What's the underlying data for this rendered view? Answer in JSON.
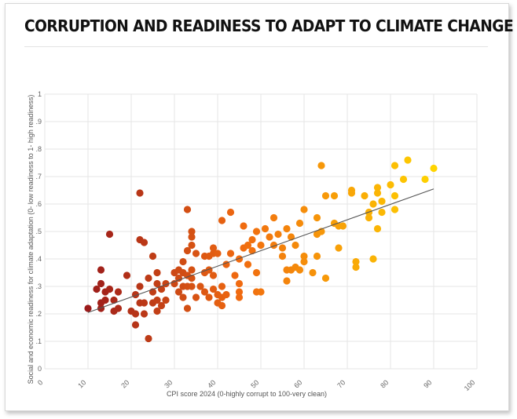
{
  "chart_data": {
    "type": "scatter",
    "title": "CORRUPTION AND READINESS TO ADAPT TO CLIMATE CHANGE",
    "xlabel": "CPI score 2024 (0-highly corrupt to 100-very clean)",
    "ylabel": "Social and economic readiness for climate adaptation (0- low readiness to 1- high readiness)",
    "xlim": [
      0,
      100
    ],
    "ylim": [
      0,
      1
    ],
    "xticks": [
      "0",
      "10",
      "20",
      "30",
      "40",
      "50",
      "60",
      "70",
      "80",
      "90",
      "100"
    ],
    "yticks": [
      "0",
      ".1",
      ".2",
      ".3",
      ".4",
      ".5",
      ".6",
      ".7",
      ".8",
      ".9",
      "1"
    ],
    "grid": true,
    "trendline": {
      "x": [
        10,
        90
      ],
      "y": [
        0.205,
        0.655
      ]
    },
    "colors": {
      "low": "#9b1b1b",
      "mid": "#f06a10",
      "high": "#ffd400",
      "trend": "#555555",
      "grid": "#e6e6e6"
    },
    "points": [
      [
        10,
        0.22
      ],
      [
        12,
        0.29
      ],
      [
        13,
        0.36
      ],
      [
        13,
        0.31
      ],
      [
        13,
        0.24
      ],
      [
        13,
        0.22
      ],
      [
        14,
        0.25
      ],
      [
        14,
        0.28
      ],
      [
        15,
        0.49
      ],
      [
        15,
        0.29
      ],
      [
        16,
        0.25
      ],
      [
        16,
        0.21
      ],
      [
        17,
        0.22
      ],
      [
        17,
        0.28
      ],
      [
        19,
        0.34
      ],
      [
        20,
        0.21
      ],
      [
        21,
        0.27
      ],
      [
        21,
        0.16
      ],
      [
        21,
        0.2
      ],
      [
        22,
        0.64
      ],
      [
        22,
        0.47
      ],
      [
        22,
        0.3
      ],
      [
        22,
        0.24
      ],
      [
        23,
        0.46
      ],
      [
        23,
        0.2
      ],
      [
        23,
        0.24
      ],
      [
        24,
        0.11
      ],
      [
        24,
        0.33
      ],
      [
        25,
        0.41
      ],
      [
        25,
        0.28
      ],
      [
        25,
        0.24
      ],
      [
        26,
        0.35
      ],
      [
        26,
        0.31
      ],
      [
        26,
        0.25
      ],
      [
        26,
        0.21
      ],
      [
        27,
        0.29
      ],
      [
        27,
        0.23
      ],
      [
        28,
        0.31
      ],
      [
        28,
        0.25
      ],
      [
        30,
        0.31
      ],
      [
        30,
        0.35
      ],
      [
        31,
        0.36
      ],
      [
        31,
        0.33
      ],
      [
        31,
        0.28
      ],
      [
        32,
        0.39
      ],
      [
        32,
        0.35
      ],
      [
        32,
        0.3
      ],
      [
        32,
        0.26
      ],
      [
        33,
        0.58
      ],
      [
        33,
        0.43
      ],
      [
        33,
        0.34
      ],
      [
        33,
        0.3
      ],
      [
        33,
        0.22
      ],
      [
        34,
        0.5
      ],
      [
        34,
        0.48
      ],
      [
        34,
        0.45
      ],
      [
        34,
        0.36
      ],
      [
        34,
        0.33
      ],
      [
        34,
        0.3
      ],
      [
        35,
        0.42
      ],
      [
        35,
        0.26
      ],
      [
        36,
        0.3
      ],
      [
        37,
        0.41
      ],
      [
        37,
        0.35
      ],
      [
        37,
        0.28
      ],
      [
        38,
        0.41
      ],
      [
        38,
        0.36
      ],
      [
        38,
        0.26
      ],
      [
        39,
        0.44
      ],
      [
        39,
        0.42
      ],
      [
        39,
        0.34
      ],
      [
        39,
        0.29
      ],
      [
        40,
        0.42
      ],
      [
        40,
        0.27
      ],
      [
        40,
        0.24
      ],
      [
        41,
        0.54
      ],
      [
        41,
        0.3
      ],
      [
        41,
        0.26
      ],
      [
        41,
        0.23
      ],
      [
        42,
        0.38
      ],
      [
        42,
        0.27
      ],
      [
        43,
        0.57
      ],
      [
        43,
        0.42
      ],
      [
        44,
        0.34
      ],
      [
        45,
        0.4
      ],
      [
        45,
        0.31
      ],
      [
        45,
        0.28
      ],
      [
        45,
        0.26
      ],
      [
        46,
        0.52
      ],
      [
        46,
        0.44
      ],
      [
        47,
        0.45
      ],
      [
        47,
        0.38
      ],
      [
        48,
        0.47
      ],
      [
        48,
        0.43
      ],
      [
        49,
        0.5
      ],
      [
        49,
        0.35
      ],
      [
        49,
        0.28
      ],
      [
        50,
        0.45
      ],
      [
        50,
        0.28
      ],
      [
        51,
        0.51
      ],
      [
        52,
        0.48
      ],
      [
        53,
        0.55
      ],
      [
        53,
        0.45
      ],
      [
        54,
        0.49
      ],
      [
        55,
        0.44
      ],
      [
        55,
        0.41
      ],
      [
        56,
        0.51
      ],
      [
        56,
        0.36
      ],
      [
        56,
        0.32
      ],
      [
        57,
        0.48
      ],
      [
        57,
        0.36
      ],
      [
        58,
        0.45
      ],
      [
        58,
        0.37
      ],
      [
        59,
        0.53
      ],
      [
        59,
        0.36
      ],
      [
        60,
        0.58
      ],
      [
        60,
        0.41
      ],
      [
        60,
        0.39
      ],
      [
        62,
        0.35
      ],
      [
        63,
        0.55
      ],
      [
        63,
        0.49
      ],
      [
        63,
        0.41
      ],
      [
        64,
        0.74
      ],
      [
        64,
        0.5
      ],
      [
        65,
        0.63
      ],
      [
        65,
        0.33
      ],
      [
        67,
        0.63
      ],
      [
        67,
        0.53
      ],
      [
        68,
        0.44
      ],
      [
        68,
        0.52
      ],
      [
        69,
        0.52
      ],
      [
        71,
        0.65
      ],
      [
        71,
        0.64
      ],
      [
        72,
        0.39
      ],
      [
        72,
        0.37
      ],
      [
        74,
        0.63
      ],
      [
        75,
        0.57
      ],
      [
        75,
        0.55
      ],
      [
        76,
        0.6
      ],
      [
        76,
        0.4
      ],
      [
        77,
        0.66
      ],
      [
        77,
        0.64
      ],
      [
        77,
        0.51
      ],
      [
        78,
        0.57
      ],
      [
        78,
        0.61
      ],
      [
        80,
        0.67
      ],
      [
        81,
        0.74
      ],
      [
        81,
        0.63
      ],
      [
        81,
        0.58
      ],
      [
        83,
        0.69
      ],
      [
        84,
        0.76
      ],
      [
        88,
        0.69
      ],
      [
        90,
        0.73
      ]
    ]
  }
}
